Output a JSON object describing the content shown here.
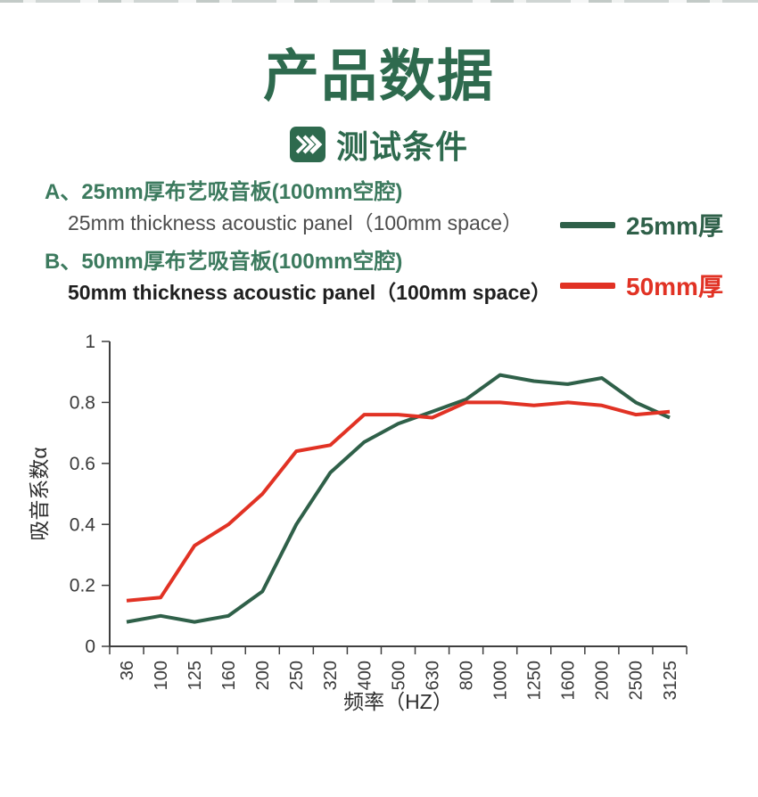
{
  "page": {
    "title": "产品数据",
    "subtitle": "测试条件"
  },
  "sections": [
    {
      "label_cn": "A、25mm厚布艺吸音板(100mm空腔)",
      "label_en": "25mm thickness acoustic panel（100mm space）"
    },
    {
      "label_cn": "B、50mm厚布艺吸音板(100mm空腔)",
      "label_en": "50mm thickness acoustic panel（100mm space）"
    }
  ],
  "legend": [
    {
      "label": "25mm厚",
      "color": "#2f6049"
    },
    {
      "label": "50mm厚",
      "color": "#e13224"
    }
  ],
  "colors": {
    "title_green": "#2e6a4e",
    "section_green": "#3c7a5e",
    "series_green": "#2f6049",
    "series_red": "#e13224",
    "axis": "#3f3f3f"
  },
  "chart_data": {
    "type": "line",
    "title": "",
    "xlabel": "频率（HZ）",
    "ylabel": "吸音系数α",
    "ylim": [
      0,
      1
    ],
    "yticks": [
      0,
      0.2,
      0.4,
      0.6,
      0.8,
      1
    ],
    "grid": false,
    "legend_position": "top-right",
    "categories": [
      "36",
      "100",
      "125",
      "160",
      "200",
      "250",
      "320",
      "400",
      "500",
      "630",
      "800",
      "1000",
      "1250",
      "1600",
      "2000",
      "2500",
      "3125"
    ],
    "series": [
      {
        "name": "25mm厚",
        "color": "#2f6049",
        "values": [
          0.08,
          0.1,
          0.08,
          0.1,
          0.18,
          0.4,
          0.57,
          0.67,
          0.73,
          0.77,
          0.81,
          0.89,
          0.87,
          0.86,
          0.88,
          0.8,
          0.75
        ]
      },
      {
        "name": "50mm厚",
        "color": "#e13224",
        "values": [
          0.15,
          0.16,
          0.33,
          0.4,
          0.5,
          0.64,
          0.66,
          0.76,
          0.76,
          0.75,
          0.8,
          0.8,
          0.79,
          0.8,
          0.79,
          0.76,
          0.77
        ]
      }
    ]
  }
}
